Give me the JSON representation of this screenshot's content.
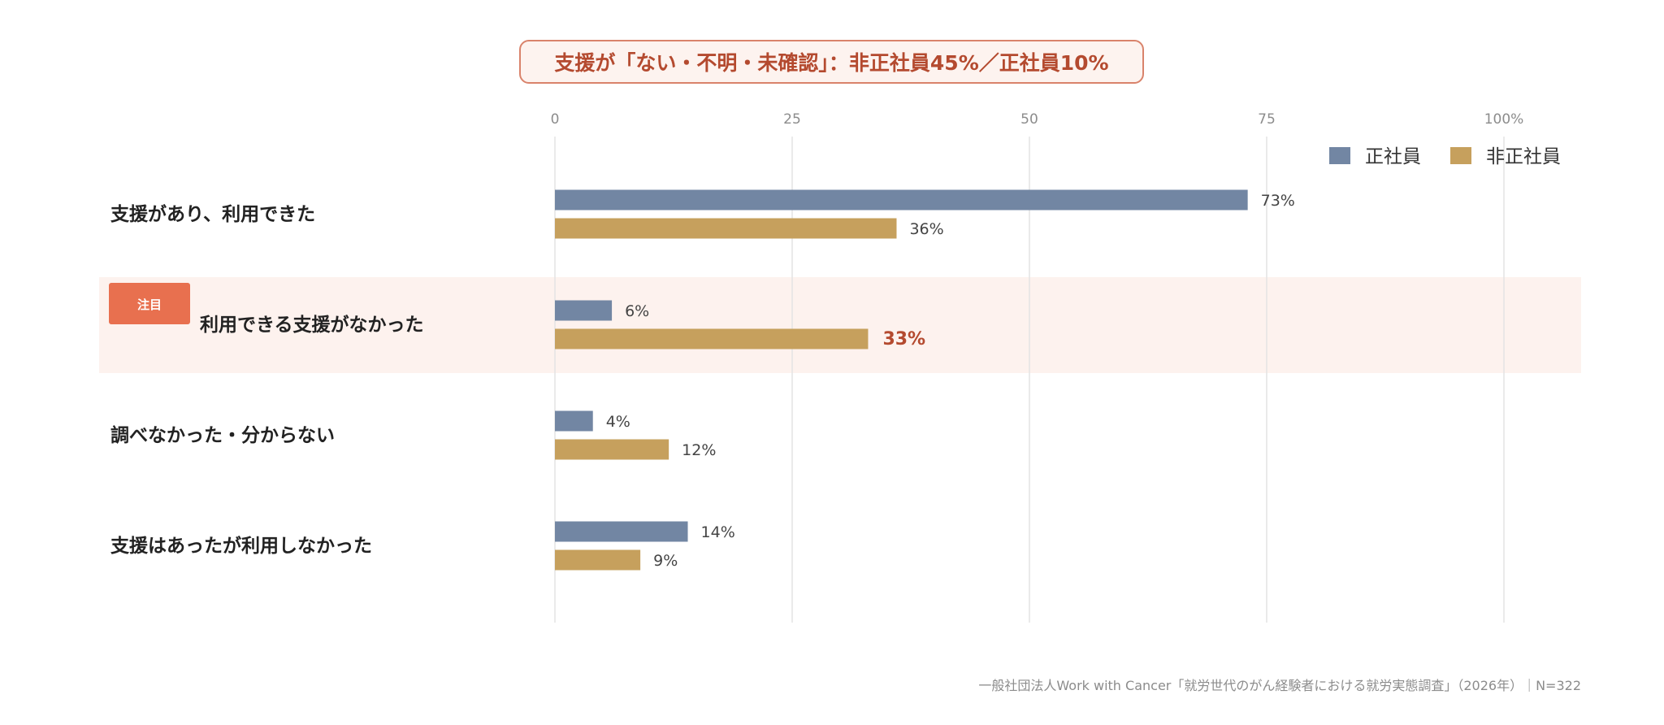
{
  "title": "支援が「ない・不明・未確認」：非正社員45%／正社員10%",
  "footer": "一般社団法人Work with Cancer「就労世代のがん経験者における就労実態調査」（2026年）｜N=322",
  "highlight_badge": "注目",
  "chart_data": {
    "type": "bar",
    "orientation": "horizontal",
    "categories": [
      "支援があり、利用できた",
      "利用できる支援がなかった",
      "調べなかった・分からない",
      "支援はあったが利用しなかった"
    ],
    "series": [
      {
        "name": "正社員",
        "values": [
          73,
          6,
          4,
          14
        ],
        "color": "#7286a3"
      },
      {
        "name": "非正社員",
        "values": [
          36,
          33,
          12,
          9
        ],
        "color": "#c6a05d"
      }
    ],
    "data_labels": [
      [
        "73%",
        "6%",
        "4%",
        "14%"
      ],
      [
        "36%",
        "33%",
        "12%",
        "9%"
      ]
    ],
    "x_ticks": [
      "0",
      "25",
      "50",
      "75",
      "100%"
    ],
    "x_tick_values": [
      0,
      25,
      50,
      75,
      100
    ],
    "xlim": [
      0,
      100
    ],
    "grid": true,
    "legend_position": "top-right",
    "highlighted_category": 1,
    "highlight_color": "#fdf2ee",
    "emphasis_label_color": "#b44a2f",
    "badge_color": "#e8704f"
  }
}
